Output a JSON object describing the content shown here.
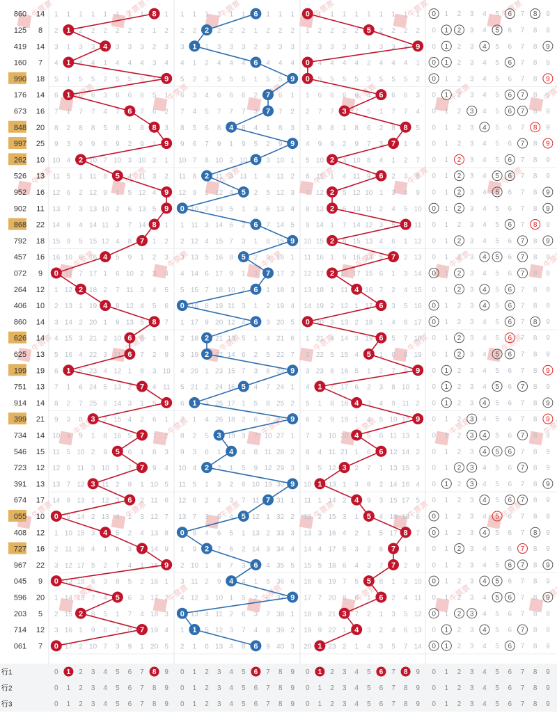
{
  "chart_data": {
    "type": "table",
    "colors": {
      "hundreds": "#c0142b",
      "tens": "#2e6eaf",
      "units": "#c0142b",
      "highlight_issue_bg": "#e3b25f",
      "cell_text": "#b9bfc8",
      "watermark": "#f3c9c9"
    },
    "rows": [
      {
        "issue": "860",
        "sum": 14,
        "highlight": false,
        "digits": [
          8,
          6,
          0
        ]
      },
      {
        "issue": "125",
        "sum": 8,
        "highlight": false,
        "digits": [
          1,
          2,
          5
        ]
      },
      {
        "issue": "419",
        "sum": 14,
        "highlight": false,
        "digits": [
          4,
          1,
          9
        ]
      },
      {
        "issue": "160",
        "sum": 7,
        "highlight": false,
        "digits": [
          1,
          6,
          0
        ]
      },
      {
        "issue": "990",
        "sum": 18,
        "highlight": true,
        "digits": [
          9,
          9,
          0
        ]
      },
      {
        "issue": "176",
        "sum": 14,
        "highlight": false,
        "digits": [
          1,
          7,
          6
        ]
      },
      {
        "issue": "673",
        "sum": 16,
        "highlight": false,
        "digits": [
          6,
          7,
          3
        ]
      },
      {
        "issue": "848",
        "sum": 20,
        "highlight": true,
        "digits": [
          8,
          4,
          8
        ]
      },
      {
        "issue": "997",
        "sum": 25,
        "highlight": true,
        "digits": [
          9,
          9,
          7
        ]
      },
      {
        "issue": "262",
        "sum": 10,
        "highlight": true,
        "digits": [
          2,
          6,
          2
        ]
      },
      {
        "issue": "526",
        "sum": 13,
        "highlight": false,
        "digits": [
          5,
          2,
          6
        ]
      },
      {
        "issue": "952",
        "sum": 16,
        "highlight": false,
        "digits": [
          9,
          5,
          2
        ]
      },
      {
        "issue": "902",
        "sum": 11,
        "highlight": false,
        "digits": [
          9,
          0,
          2
        ]
      },
      {
        "issue": "868",
        "sum": 22,
        "highlight": true,
        "digits": [
          8,
          6,
          8
        ]
      },
      {
        "issue": "792",
        "sum": 18,
        "highlight": false,
        "digits": [
          7,
          9,
          2
        ]
      },
      {
        "issue": "457",
        "sum": 16,
        "highlight": false,
        "digits": [
          4,
          5,
          7
        ]
      },
      {
        "issue": "072",
        "sum": 9,
        "highlight": false,
        "digits": [
          0,
          7,
          2
        ]
      },
      {
        "issue": "264",
        "sum": 12,
        "highlight": false,
        "digits": [
          2,
          6,
          4
        ]
      },
      {
        "issue": "406",
        "sum": 10,
        "highlight": false,
        "digits": [
          4,
          0,
          6
        ]
      },
      {
        "issue": "860",
        "sum": 14,
        "highlight": false,
        "digits": [
          8,
          6,
          0
        ]
      },
      {
        "issue": "626",
        "sum": 14,
        "highlight": true,
        "digits": [
          6,
          2,
          6
        ]
      },
      {
        "issue": "625",
        "sum": 13,
        "highlight": false,
        "digits": [
          6,
          2,
          5
        ]
      },
      {
        "issue": "199",
        "sum": 19,
        "highlight": true,
        "digits": [
          1,
          9,
          9
        ]
      },
      {
        "issue": "751",
        "sum": 13,
        "highlight": false,
        "digits": [
          7,
          5,
          1
        ]
      },
      {
        "issue": "914",
        "sum": 14,
        "highlight": false,
        "digits": [
          9,
          1,
          4
        ]
      },
      {
        "issue": "399",
        "sum": 21,
        "highlight": true,
        "digits": [
          3,
          9,
          9
        ]
      },
      {
        "issue": "734",
        "sum": 14,
        "highlight": false,
        "digits": [
          7,
          3,
          4
        ]
      },
      {
        "issue": "546",
        "sum": 15,
        "highlight": false,
        "digits": [
          5,
          4,
          6
        ]
      },
      {
        "issue": "723",
        "sum": 12,
        "highlight": false,
        "digits": [
          7,
          2,
          3
        ]
      },
      {
        "issue": "391",
        "sum": 13,
        "highlight": false,
        "digits": [
          3,
          9,
          1
        ]
      },
      {
        "issue": "674",
        "sum": 17,
        "highlight": false,
        "digits": [
          6,
          7,
          4
        ]
      },
      {
        "issue": "055",
        "sum": 10,
        "highlight": true,
        "digits": [
          0,
          5,
          5
        ]
      },
      {
        "issue": "408",
        "sum": 12,
        "highlight": false,
        "digits": [
          4,
          0,
          8
        ]
      },
      {
        "issue": "727",
        "sum": 16,
        "highlight": true,
        "digits": [
          7,
          2,
          7
        ]
      },
      {
        "issue": "967",
        "sum": 22,
        "highlight": false,
        "digits": [
          9,
          6,
          7
        ]
      },
      {
        "issue": "045",
        "sum": 9,
        "highlight": false,
        "digits": [
          0,
          4,
          5
        ]
      },
      {
        "issue": "596",
        "sum": 20,
        "highlight": false,
        "digits": [
          5,
          9,
          6
        ]
      },
      {
        "issue": "203",
        "sum": 5,
        "highlight": false,
        "digits": [
          2,
          0,
          3
        ]
      },
      {
        "issue": "714",
        "sum": 12,
        "highlight": false,
        "digits": [
          7,
          1,
          4
        ]
      },
      {
        "issue": "061",
        "sum": 7,
        "highlight": false,
        "digits": [
          0,
          6,
          1
        ]
      }
    ],
    "footer": [
      {
        "label": "行1",
        "hits": [
          1,
          8,
          6,
          1,
          6,
          8
        ]
      },
      {
        "label": "行2",
        "hits": []
      },
      {
        "label": "行3",
        "hits": []
      }
    ],
    "watermark_text": "牛票票"
  }
}
